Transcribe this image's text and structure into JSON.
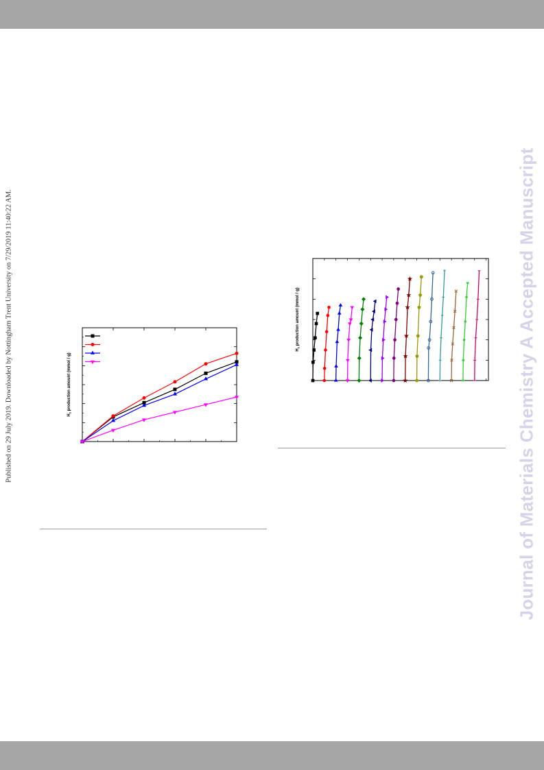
{
  "page": {
    "watermark": "Journal of Materials Chemistry A Accepted Manuscript",
    "published_line": "Published on 29 July 2019. Downloaded by Nottingham Trent University on 7/29/2019 11:40:22 AM."
  },
  "chart_data": [
    {
      "type": "line",
      "title": "",
      "xlabel": "",
      "ylabel": "H2 production amount (mmol / g)",
      "ylabel_main": "H",
      "ylabel_sub": "2",
      "ylabel_rest": " production amount (mmol / g)",
      "x": [
        0,
        1,
        2,
        3,
        4,
        5
      ],
      "legend": "top-left",
      "legend_labels": [
        "",
        "",
        "",
        ""
      ],
      "series": [
        {
          "color": "#000000",
          "marker": "square",
          "values": [
            0,
            0.26,
            0.41,
            0.55,
            0.72,
            0.84
          ]
        },
        {
          "color": "#ff0000",
          "marker": "circle",
          "values": [
            0,
            0.27,
            0.46,
            0.63,
            0.82,
            0.93
          ]
        },
        {
          "color": "#0000ff",
          "marker": "triangle-up",
          "values": [
            0,
            0.22,
            0.38,
            0.5,
            0.66,
            0.81
          ]
        },
        {
          "color": "#ff00ff",
          "marker": "triangle-down",
          "values": [
            0,
            0.12,
            0.23,
            0.31,
            0.39,
            0.47
          ]
        }
      ],
      "xlim": [
        0,
        5
      ],
      "ylim": [
        0,
        1.2
      ],
      "x_ticks": [
        0,
        1,
        2,
        3,
        4,
        5
      ],
      "y_ticks": [
        0,
        0.2,
        0.4,
        0.6,
        0.8,
        1.0,
        1.2
      ],
      "tick_labels_visible": false
    },
    {
      "type": "line",
      "title": "",
      "xlabel": "",
      "ylabel": "H2 production amount (mmol / g)",
      "ylabel_main": "H",
      "ylabel_sub": "2",
      "ylabel_rest": " production amount (mmol / g)",
      "xlim": [
        0,
        76
      ],
      "ylim": [
        0,
        6
      ],
      "x_ticks": [
        0,
        5,
        10,
        15,
        20,
        25,
        30,
        35,
        40,
        45,
        50,
        55,
        60,
        65,
        70,
        75
      ],
      "y_ticks": [
        0,
        1,
        2,
        3,
        4,
        5,
        6
      ],
      "tick_labels_visible": false,
      "cycle_offsets": [
        0,
        0.1,
        0.5,
        1,
        1.5,
        2
      ],
      "cycles": [
        {
          "start": 0,
          "color": "#000000",
          "marker": "square",
          "values": [
            0,
            0.9,
            1.5,
            2.1,
            2.8,
            3.3
          ]
        },
        {
          "start": 5,
          "color": "#ff0000",
          "marker": "circle",
          "values": [
            0,
            0.6,
            1.5,
            2.4,
            3.2,
            3.6
          ]
        },
        {
          "start": 10,
          "color": "#0000ff",
          "marker": "triangle-up",
          "values": [
            0,
            0.7,
            1.9,
            2.5,
            3.3,
            3.7
          ]
        },
        {
          "start": 15,
          "color": "#ff00ff",
          "marker": "triangle-down",
          "values": [
            0,
            1.0,
            2.0,
            2.8,
            3.0,
            3.6
          ]
        },
        {
          "start": 20,
          "color": "#008000",
          "marker": "diamond",
          "values": [
            0,
            1.1,
            2.1,
            2.8,
            3.5,
            4.0
          ]
        },
        {
          "start": 25,
          "color": "#000080",
          "marker": "triangle-left",
          "values": [
            0,
            1.5,
            2.5,
            3.0,
            3.4,
            3.9
          ]
        },
        {
          "start": 30,
          "color": "#9900ff",
          "marker": "triangle-right",
          "values": [
            0,
            1.1,
            2.0,
            2.9,
            3.5,
            4.1
          ]
        },
        {
          "start": 35,
          "color": "#800080",
          "marker": "hexagon",
          "values": [
            0,
            1.1,
            2.0,
            3.0,
            3.8,
            4.5
          ]
        },
        {
          "start": 40,
          "color": "#800000",
          "marker": "star",
          "values": [
            0,
            1.2,
            2.2,
            3.6,
            4.2,
            5.0
          ]
        },
        {
          "start": 45,
          "color": "#999900",
          "marker": "pentagon",
          "values": [
            0,
            1.2,
            2.2,
            3.6,
            4.2,
            5.1
          ]
        },
        {
          "start": 50,
          "color": "#336699",
          "marker": "circle-open",
          "values": [
            0,
            1.6,
            2.0,
            2.9,
            4.0,
            5.3
          ]
        },
        {
          "start": 55,
          "color": "#339999",
          "marker": "plus",
          "values": [
            0,
            1.0,
            2.1,
            3.2,
            4.1,
            5.4
          ]
        },
        {
          "start": 60,
          "color": "#996633",
          "marker": "x",
          "values": [
            0,
            1.0,
            1.8,
            2.6,
            3.4,
            4.4
          ]
        },
        {
          "start": 65,
          "color": "#33cc33",
          "marker": "asterisk",
          "values": [
            0,
            1.0,
            2.0,
            2.9,
            4.1,
            4.8
          ]
        },
        {
          "start": 70,
          "color": "#cc0066",
          "marker": "line",
          "values": [
            0,
            1.0,
            2.1,
            3.0,
            4.0,
            5.4
          ]
        }
      ]
    }
  ]
}
